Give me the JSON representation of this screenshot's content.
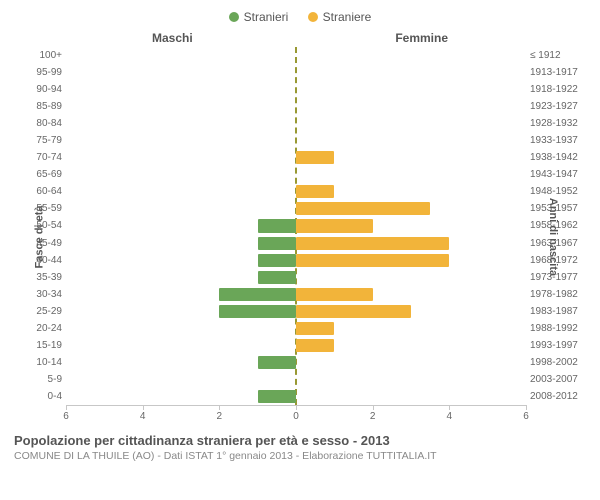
{
  "chart": {
    "type": "population-pyramid",
    "legend": {
      "male": {
        "label": "Stranieri",
        "color": "#6aa658"
      },
      "female": {
        "label": "Straniere",
        "color": "#f2b43a"
      }
    },
    "column_headers": {
      "left": "Maschi",
      "right": "Femmine"
    },
    "y_left_title": "Fasce di età",
    "y_right_title": "Anni di nascita",
    "x_axis": {
      "max": 6,
      "ticks": [
        6,
        4,
        2,
        0,
        2,
        4,
        6
      ]
    },
    "background_color": "#ffffff",
    "grid_color": "#c7c7c7",
    "center_line_color": "#999933",
    "bar_height_ratio": 0.78,
    "rows": [
      {
        "age": "100+",
        "years": "≤ 1912",
        "m": 0,
        "f": 0
      },
      {
        "age": "95-99",
        "years": "1913-1917",
        "m": 0,
        "f": 0
      },
      {
        "age": "90-94",
        "years": "1918-1922",
        "m": 0,
        "f": 0
      },
      {
        "age": "85-89",
        "years": "1923-1927",
        "m": 0,
        "f": 0
      },
      {
        "age": "80-84",
        "years": "1928-1932",
        "m": 0,
        "f": 0
      },
      {
        "age": "75-79",
        "years": "1933-1937",
        "m": 0,
        "f": 0
      },
      {
        "age": "70-74",
        "years": "1938-1942",
        "m": 0,
        "f": 1
      },
      {
        "age": "65-69",
        "years": "1943-1947",
        "m": 0,
        "f": 0
      },
      {
        "age": "60-64",
        "years": "1948-1952",
        "m": 0,
        "f": 1
      },
      {
        "age": "55-59",
        "years": "1953-1957",
        "m": 0,
        "f": 3.5
      },
      {
        "age": "50-54",
        "years": "1958-1962",
        "m": 1,
        "f": 2
      },
      {
        "age": "45-49",
        "years": "1963-1967",
        "m": 1,
        "f": 4
      },
      {
        "age": "40-44",
        "years": "1968-1972",
        "m": 1,
        "f": 4
      },
      {
        "age": "35-39",
        "years": "1973-1977",
        "m": 1,
        "f": 0
      },
      {
        "age": "30-34",
        "years": "1978-1982",
        "m": 2,
        "f": 2
      },
      {
        "age": "25-29",
        "years": "1983-1987",
        "m": 2,
        "f": 3
      },
      {
        "age": "20-24",
        "years": "1988-1992",
        "m": 0,
        "f": 1
      },
      {
        "age": "15-19",
        "years": "1993-1997",
        "m": 0,
        "f": 1
      },
      {
        "age": "10-14",
        "years": "1998-2002",
        "m": 1,
        "f": 0
      },
      {
        "age": "5-9",
        "years": "2003-2007",
        "m": 0,
        "f": 0
      },
      {
        "age": "0-4",
        "years": "2008-2012",
        "m": 1,
        "f": 0
      }
    ],
    "footer": {
      "title": "Popolazione per cittadinanza straniera per età e sesso - 2013",
      "subtitle": "COMUNE DI LA THUILE (AO) - Dati ISTAT 1° gennaio 2013 - Elaborazione TUTTITALIA.IT"
    }
  }
}
